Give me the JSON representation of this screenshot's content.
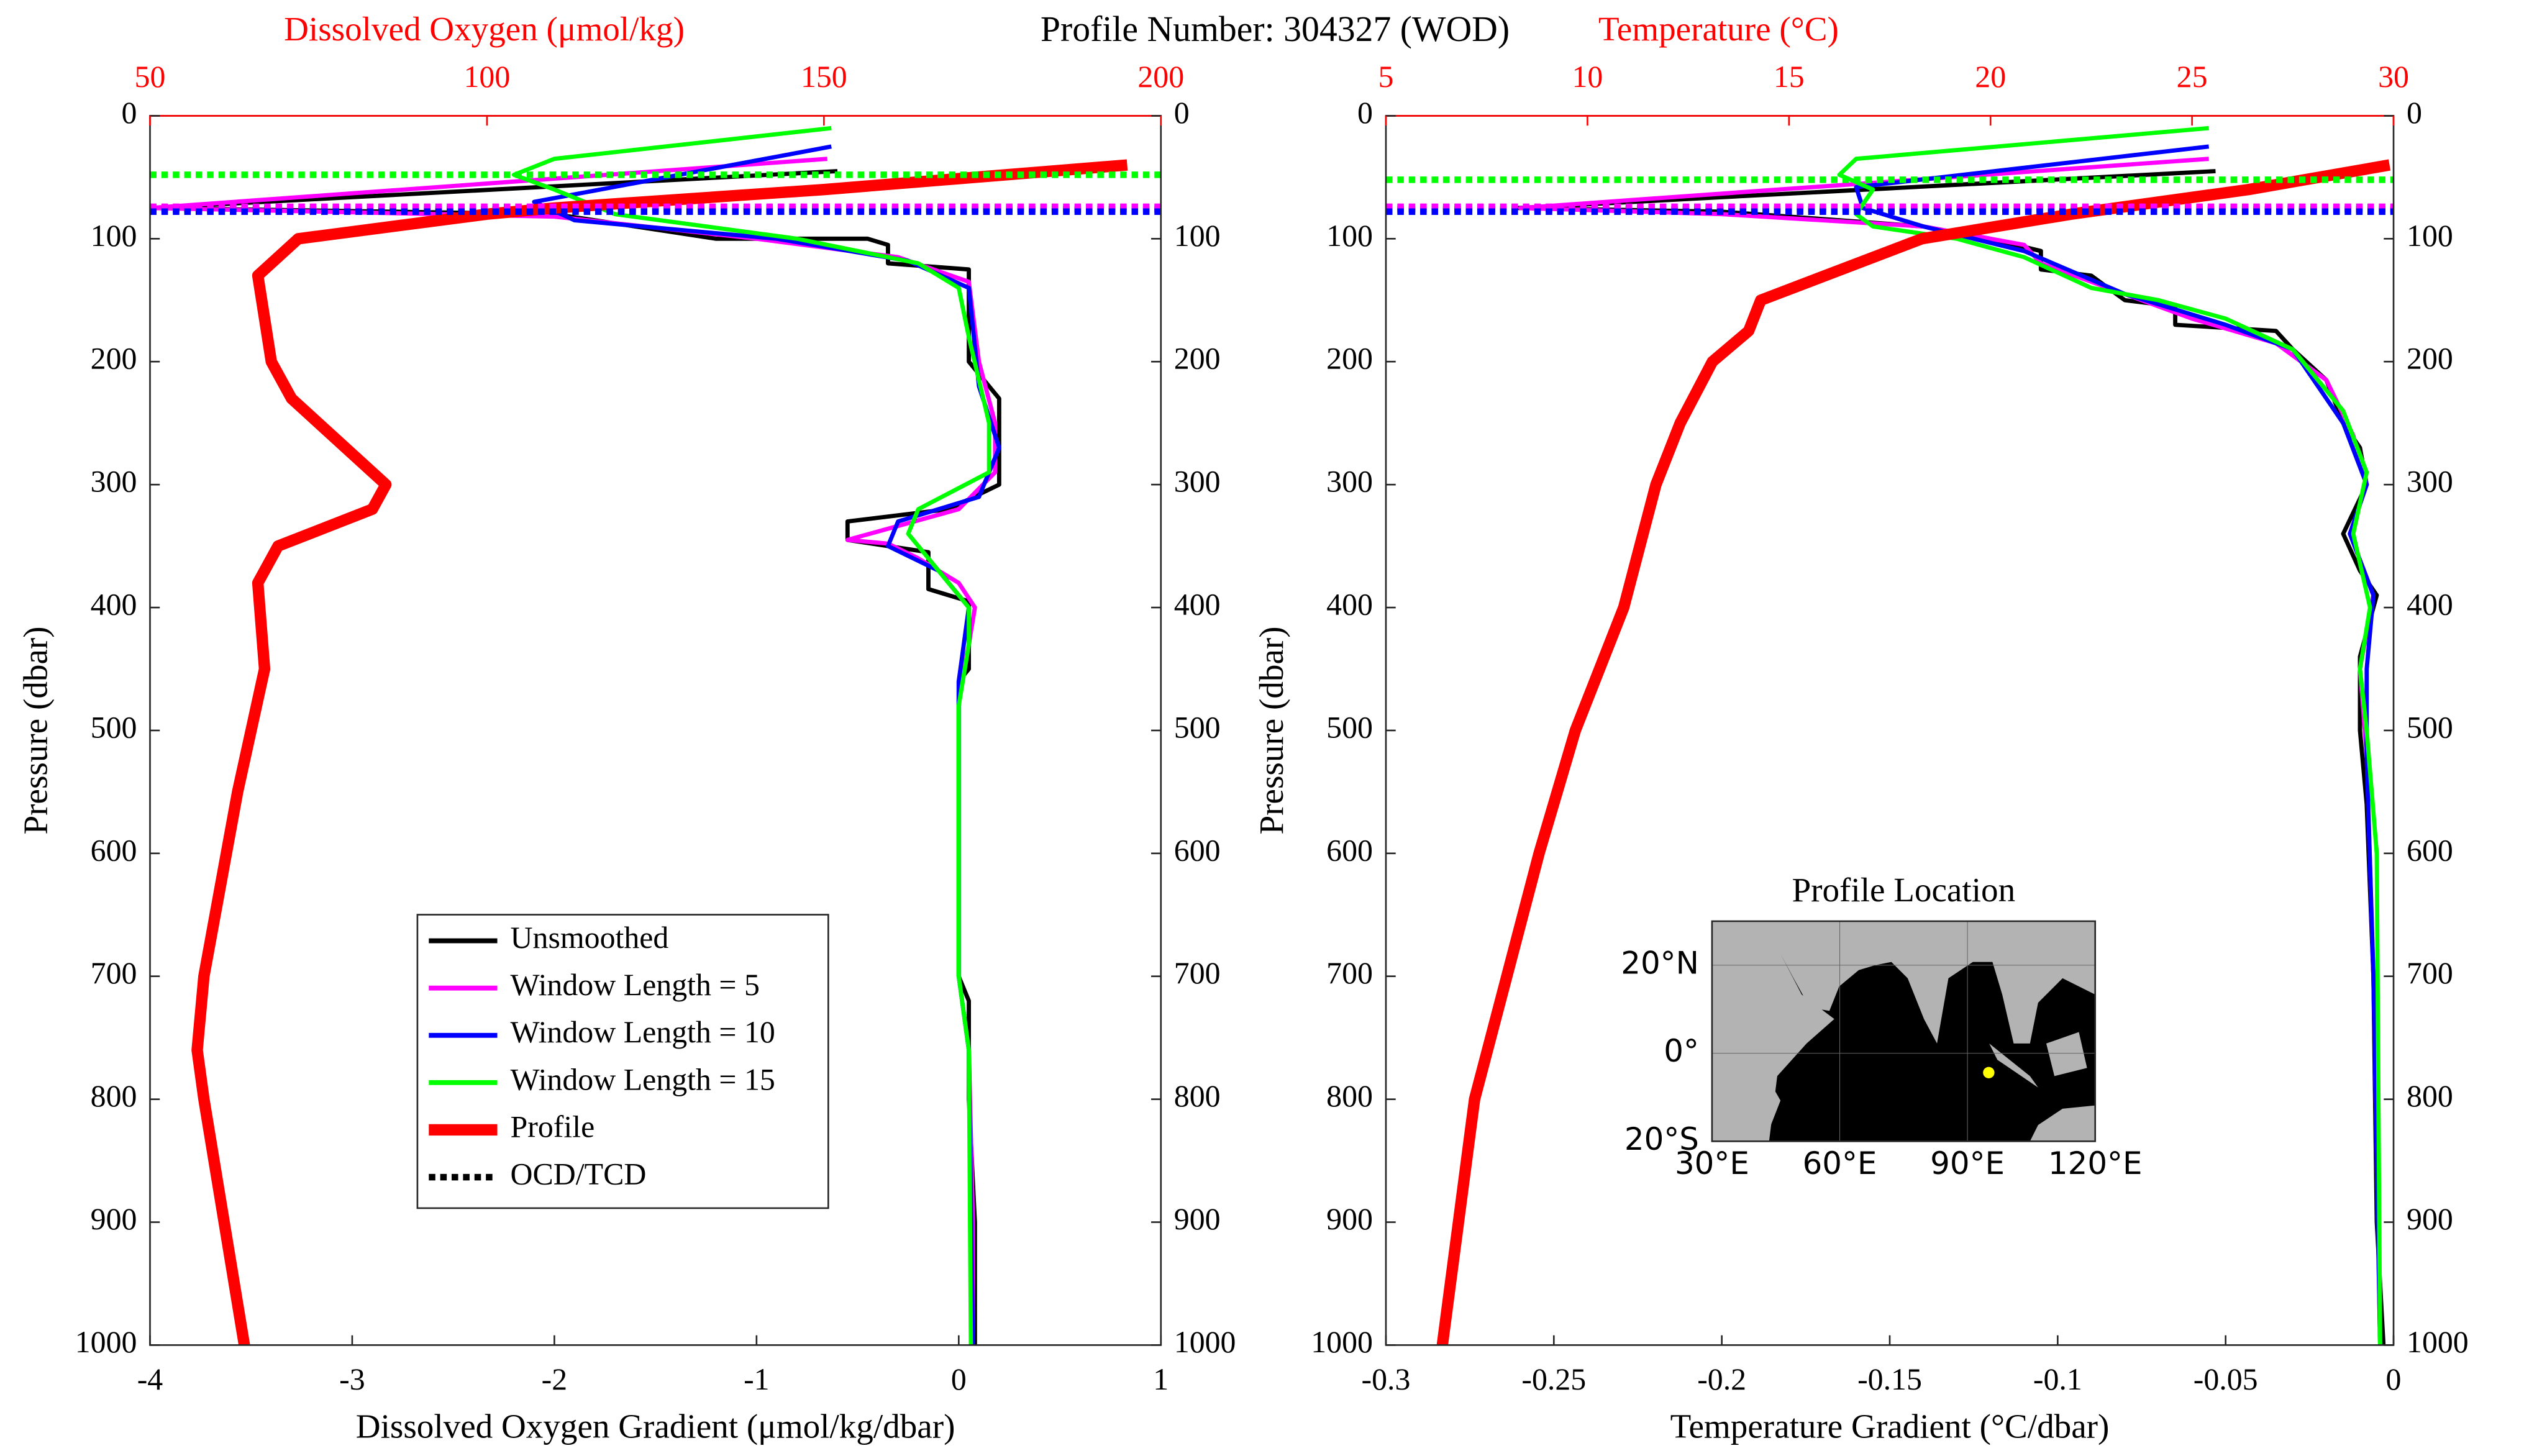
{
  "title": "Profile Number: 304327 (WOD)",
  "chart_data": [
    {
      "type": "profile",
      "xlabel": "Dissolved Oxygen Gradient (μmol/kg/dbar)",
      "x2label": "Dissolved Oxygen (μmol/kg)",
      "ylabel": "Pressure (dbar)",
      "xlim": [
        -4,
        1
      ],
      "xticks": [
        -4,
        -3,
        -2,
        -1,
        0,
        1
      ],
      "x2lim": [
        50,
        200
      ],
      "x2ticks": [
        50,
        100,
        150,
        200
      ],
      "x2color": "#ff0000",
      "ylim": [
        0,
        1000
      ],
      "yticks": [
        0,
        100,
        200,
        300,
        400,
        500,
        600,
        700,
        800,
        900,
        1000
      ],
      "y_reversed": true,
      "legend": "lower center",
      "series": [
        {
          "name": "Unsmoothed",
          "color": "#000000",
          "x": [
            -0.6,
            -4,
            -2.0,
            -1.2,
            -0.45,
            -0.35,
            -0.35,
            0.05,
            0.05,
            0.05,
            0.2,
            0.2,
            -0.05,
            -0.55,
            -0.55,
            -0.15,
            -0.15,
            0.05,
            0.05,
            0,
            0,
            0,
            0.05,
            0.05,
            0.08,
            0.08
          ],
          "y": [
            45,
            75,
            80,
            100,
            100,
            105,
            120,
            125,
            150,
            200,
            230,
            300,
            320,
            330,
            345,
            355,
            385,
            395,
            450,
            460,
            600,
            700,
            720,
            800,
            900,
            1000
          ]
        },
        {
          "name": "Window Length = 5",
          "color": "#ff00ff",
          "x": [
            -0.65,
            -4,
            -2.0,
            -1.0,
            -0.3,
            0.05,
            0.1,
            0.18,
            0.18,
            0,
            -0.55,
            -0.35,
            -0.2,
            0.0,
            0.08,
            0.05,
            0,
            0,
            0.05,
            0.07,
            0.07
          ],
          "y": [
            35,
            75,
            82,
            100,
            115,
            135,
            200,
            250,
            290,
            320,
            345,
            348,
            360,
            380,
            400,
            430,
            470,
            700,
            760,
            900,
            1000
          ]
        },
        {
          "name": "Window Length = 10",
          "color": "#0000ff",
          "x": [
            -0.63,
            -2.1,
            -1.9,
            -0.9,
            -0.25,
            0.05,
            0.1,
            0.2,
            0.1,
            -0.3,
            -0.35,
            -0.1,
            0.05,
            0,
            0,
            0.05,
            0.07
          ],
          "y": [
            25,
            70,
            85,
            100,
            118,
            140,
            220,
            270,
            310,
            330,
            350,
            370,
            400,
            460,
            700,
            760,
            1000
          ]
        },
        {
          "name": "Window Length = 15",
          "color": "#00ff00",
          "x": [
            -0.63,
            -2.0,
            -2.2,
            -2.0,
            -1.7,
            -0.8,
            -0.2,
            0,
            0.05,
            0.15,
            0.15,
            -0.2,
            -0.25,
            -0.1,
            0.05,
            0.05,
            0,
            0,
            0.05,
            0.06
          ],
          "y": [
            10,
            35,
            48,
            60,
            80,
            100,
            120,
            140,
            180,
            250,
            290,
            320,
            340,
            370,
            400,
            430,
            480,
            700,
            760,
            1000
          ]
        },
        {
          "name": "Profile",
          "color": "#ff0000",
          "axis": "x2",
          "x": [
            195,
            150,
            110,
            100,
            72,
            66,
            68,
            71,
            85,
            83,
            69,
            66,
            67,
            63,
            58,
            57,
            58,
            61,
            64
          ],
          "y": [
            40,
            60,
            75,
            80,
            100,
            130,
            200,
            230,
            300,
            320,
            350,
            380,
            450,
            550,
            700,
            760,
            800,
            900,
            1000
          ]
        }
      ],
      "markers": {
        "name": "OCD/TCD",
        "pressures": [
          76,
          74,
          78,
          48
        ],
        "colors": [
          "#000000",
          "#ff00ff",
          "#0000ff",
          "#00ff00"
        ]
      }
    },
    {
      "type": "profile",
      "xlabel": "Temperature Gradient (°C/dbar)",
      "x2label": "Temperature (°C)",
      "ylabel": "Pressure (dbar)",
      "xlim": [
        -0.3,
        0
      ],
      "xticks": [
        -0.3,
        -0.25,
        -0.2,
        -0.15,
        -0.1,
        -0.05,
        0
      ],
      "x2lim": [
        5,
        30
      ],
      "x2ticks": [
        5,
        10,
        15,
        20,
        25,
        30
      ],
      "x2color": "#ff0000",
      "ylim": [
        0,
        1000
      ],
      "yticks": [
        0,
        100,
        200,
        300,
        400,
        500,
        600,
        700,
        800,
        900,
        1000
      ],
      "y_reversed": true,
      "series": [
        {
          "color": "#000000",
          "x": [
            -0.053,
            -0.261,
            -0.2,
            -0.14,
            -0.12,
            -0.105,
            -0.105,
            -0.09,
            -0.08,
            -0.065,
            -0.065,
            -0.035,
            -0.03,
            -0.02,
            -0.015,
            -0.01,
            -0.008,
            -0.015,
            -0.01,
            -0.005,
            -0.01,
            -0.01,
            -0.008,
            -0.006,
            -0.005,
            -0.003
          ],
          "y": [
            45,
            75,
            78,
            90,
            100,
            110,
            125,
            130,
            150,
            155,
            170,
            175,
            190,
            215,
            250,
            270,
            300,
            340,
            370,
            390,
            440,
            500,
            560,
            700,
            900,
            1000
          ]
        },
        {
          "color": "#ff00ff",
          "x": [
            -0.055,
            -0.26,
            -0.2,
            -0.14,
            -0.11,
            -0.105,
            -0.08,
            -0.06,
            -0.035,
            -0.02,
            -0.012,
            -0.008,
            -0.013,
            -0.006,
            -0.01,
            -0.008,
            -0.006,
            -0.004
          ],
          "y": [
            35,
            75,
            80,
            90,
            105,
            120,
            145,
            165,
            185,
            215,
            260,
            300,
            340,
            390,
            450,
            520,
            700,
            1000
          ]
        },
        {
          "color": "#0000ff",
          "x": [
            -0.055,
            -0.16,
            -0.158,
            -0.14,
            -0.11,
            -0.08,
            -0.05,
            -0.03,
            -0.015,
            -0.008,
            -0.013,
            -0.006,
            -0.008,
            -0.008,
            -0.006,
            -0.004
          ],
          "y": [
            25,
            58,
            75,
            90,
            110,
            145,
            170,
            190,
            250,
            300,
            340,
            390,
            450,
            520,
            700,
            1000
          ]
        },
        {
          "color": "#00ff00",
          "x": [
            -0.055,
            -0.16,
            -0.165,
            -0.155,
            -0.16,
            -0.155,
            -0.13,
            -0.11,
            -0.09,
            -0.07,
            -0.05,
            -0.03,
            -0.015,
            -0.008,
            -0.012,
            -0.007,
            -0.01,
            -0.008,
            -0.005,
            -0.004
          ],
          "y": [
            10,
            35,
            48,
            60,
            80,
            90,
            100,
            115,
            140,
            150,
            165,
            190,
            240,
            290,
            340,
            400,
            450,
            500,
            600,
            1000
          ]
        },
        {
          "color": "#ff0000",
          "axis": "x2",
          "x": [
            29.9,
            26.4,
            22,
            18.3,
            14.3,
            14,
            13.1,
            12.3,
            11.7,
            10.9,
            9.7,
            8.8,
            8,
            7.2,
            6.8,
            6.4
          ],
          "y": [
            40,
            60,
            80,
            100,
            150,
            175,
            200,
            250,
            300,
            400,
            500,
            600,
            700,
            800,
            900,
            1000
          ]
        }
      ],
      "markers": {
        "pressures": [
          76,
          74,
          78,
          52
        ],
        "colors": [
          "#000000",
          "#ff00ff",
          "#0000ff",
          "#00ff00"
        ]
      }
    },
    {
      "type": "map",
      "title": "Profile Location",
      "xlim": [
        30,
        120
      ],
      "ylim": [
        -20,
        30
      ],
      "xticks": [
        {
          "value": 30,
          "label": "30°E"
        },
        {
          "value": 60,
          "label": "60°E"
        },
        {
          "value": 90,
          "label": "90°E"
        },
        {
          "value": 120,
          "label": "120°E"
        }
      ],
      "yticks": [
        {
          "value": 20,
          "label": "20°N"
        },
        {
          "value": 0,
          "label": "0°"
        },
        {
          "value": -20,
          "label": "20°S"
        }
      ],
      "x": [
        95
      ],
      "y": [
        -4.4
      ],
      "color": "#ffff00"
    }
  ]
}
